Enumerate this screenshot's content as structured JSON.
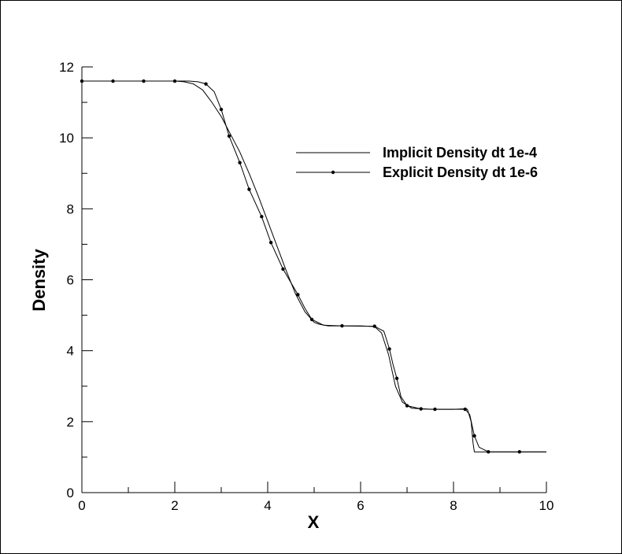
{
  "chart_data": {
    "type": "line",
    "title": "",
    "xlabel": "X",
    "ylabel": "Density",
    "xlim": [
      0,
      10
    ],
    "ylim": [
      0,
      12
    ],
    "xticks": [
      0,
      2,
      4,
      6,
      8,
      10
    ],
    "yticks": [
      0,
      2,
      4,
      6,
      8,
      10,
      12
    ],
    "grid": false,
    "legend_position": "top-right",
    "series": [
      {
        "name": "Implicit Density dt 1e-4",
        "marker": "none",
        "color": "#000000",
        "x": [
          0,
          2.0,
          2.2,
          2.4,
          2.6,
          2.8,
          3.0,
          3.2,
          3.4,
          3.6,
          3.8,
          4.0,
          4.2,
          4.4,
          4.6,
          4.8,
          5.0,
          5.1,
          5.3,
          6.0,
          6.3,
          6.45,
          6.6,
          6.75,
          6.9,
          7.1,
          7.5,
          8.0,
          8.2,
          8.3,
          8.38,
          8.42,
          8.45,
          8.7,
          10.0
        ],
        "y": [
          11.6,
          11.6,
          11.58,
          11.52,
          11.35,
          11.0,
          10.6,
          10.1,
          9.6,
          9.0,
          8.35,
          7.65,
          6.95,
          6.25,
          5.6,
          5.1,
          4.8,
          4.75,
          4.7,
          4.7,
          4.68,
          4.5,
          3.9,
          3.0,
          2.55,
          2.38,
          2.35,
          2.35,
          2.36,
          2.35,
          2.0,
          1.4,
          1.15,
          1.15,
          1.15
        ]
      },
      {
        "name": "Explicit Density dt 1e-6",
        "marker": "circle",
        "color": "#000000",
        "x": [
          0,
          0.67,
          1.33,
          2.0,
          2.15,
          2.3,
          2.5,
          2.67,
          2.85,
          3.0,
          3.17,
          3.4,
          3.6,
          3.87,
          4.07,
          4.33,
          4.65,
          4.8,
          4.95,
          5.2,
          5.6,
          6.3,
          6.5,
          6.55,
          6.62,
          6.7,
          6.78,
          6.87,
          7.0,
          7.3,
          7.6,
          8.0,
          8.25,
          8.35,
          8.45,
          8.55,
          8.75,
          9.0,
          9.42,
          10.0
        ],
        "y": [
          11.6,
          11.6,
          11.6,
          11.6,
          11.6,
          11.6,
          11.58,
          11.52,
          11.3,
          10.8,
          10.05,
          9.3,
          8.55,
          7.78,
          7.05,
          6.3,
          5.58,
          5.2,
          4.88,
          4.72,
          4.7,
          4.69,
          4.55,
          4.35,
          4.05,
          3.6,
          3.22,
          2.7,
          2.45,
          2.36,
          2.35,
          2.35,
          2.35,
          2.2,
          1.6,
          1.28,
          1.15,
          1.15,
          1.15,
          1.15
        ],
        "marker_x": [
          0,
          0.67,
          1.33,
          2.0,
          2.67,
          3.0,
          3.17,
          3.4,
          3.6,
          3.87,
          4.07,
          4.33,
          4.65,
          4.95,
          5.6,
          6.3,
          6.62,
          6.78,
          7.0,
          7.3,
          7.6,
          8.25,
          8.45,
          8.75,
          9.42
        ],
        "marker_y": [
          11.6,
          11.6,
          11.6,
          11.6,
          11.52,
          10.8,
          10.05,
          9.3,
          8.55,
          7.78,
          7.05,
          6.3,
          5.58,
          4.88,
          4.7,
          4.69,
          4.05,
          3.22,
          2.45,
          2.36,
          2.35,
          2.35,
          1.6,
          1.15,
          1.15
        ]
      }
    ]
  }
}
